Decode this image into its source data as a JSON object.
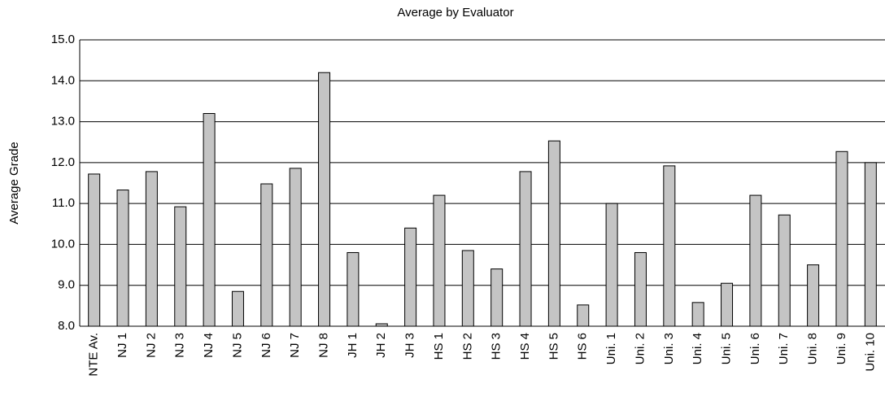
{
  "chart_data": {
    "type": "bar",
    "title": "Average by Evaluator",
    "y_label": "Average Grade",
    "categories": [
      "NTE Av.",
      "NJ 1",
      "NJ 2",
      "NJ 3",
      "NJ 4",
      "NJ 5",
      "NJ 6",
      "NJ 7",
      "NJ 8",
      "JH 1",
      "JH 2",
      "JH 3",
      "HS 1",
      "HS 2",
      "HS 3",
      "HS 4",
      "HS 5",
      "HS 6",
      "Uni. 1",
      "Uni. 2",
      "Uni. 3",
      "Uni. 4",
      "Uni. 5",
      "Uni. 6",
      "Uni. 7",
      "Uni. 8",
      "Uni. 9",
      "Uni. 10"
    ],
    "values": [
      11.72,
      11.33,
      11.78,
      10.92,
      13.2,
      8.85,
      11.48,
      11.86,
      14.2,
      9.8,
      8.06,
      10.4,
      11.2,
      9.85,
      9.4,
      11.78,
      12.53,
      8.52,
      11.0,
      9.8,
      11.92,
      8.58,
      9.05,
      11.2,
      10.72,
      9.5,
      12.27,
      12.0
    ],
    "color": "#c4c4c4",
    "ylim": [
      8,
      15
    ],
    "yticks": [
      {
        "value": 8,
        "label": "8.0"
      },
      {
        "value": 9,
        "label": "9.0"
      },
      {
        "value": 10,
        "label": "10.0"
      },
      {
        "value": 11,
        "label": "11.0"
      },
      {
        "value": 12,
        "label": "12.0"
      },
      {
        "value": 13,
        "label": "13.0"
      },
      {
        "value": 14,
        "label": "14.0"
      },
      {
        "value": 15,
        "label": "15.0"
      }
    ],
    "grid": true
  }
}
